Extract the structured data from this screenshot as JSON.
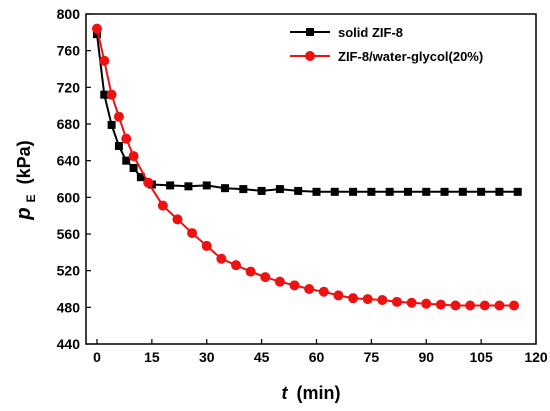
{
  "chart_data": {
    "type": "line",
    "xlabel_var": "t",
    "xlabel_unit": "(min)",
    "ylabel_var": "p",
    "ylabel_sub": "E",
    "ylabel_unit": "(kPa)",
    "xlim": [
      -3,
      120
    ],
    "ylim": [
      440,
      800
    ],
    "xticks": [
      0,
      15,
      30,
      45,
      60,
      75,
      90,
      105,
      120
    ],
    "yticks": [
      440,
      480,
      520,
      560,
      600,
      640,
      680,
      720,
      760,
      800
    ],
    "grid": false,
    "legend_position": "top-right",
    "series": [
      {
        "name": "solid ZIF-8",
        "color": "#000000",
        "marker": "square",
        "x": [
          0,
          2,
          4,
          6,
          8,
          10,
          12,
          15,
          20,
          25,
          30,
          35,
          40,
          45,
          50,
          55,
          60,
          65,
          70,
          75,
          80,
          85,
          90,
          95,
          100,
          105,
          110,
          115
        ],
        "y": [
          778,
          712,
          679,
          656,
          640,
          632,
          622,
          614,
          613,
          612,
          613,
          610,
          609,
          607,
          609,
          607,
          606,
          606,
          606,
          606,
          606,
          606,
          606,
          606,
          606,
          606,
          606,
          606
        ]
      },
      {
        "name": "ZIF-8/water-glycol(20%)",
        "color": "#ee1111",
        "marker": "circle",
        "x": [
          0,
          2,
          4,
          6,
          8,
          10,
          14,
          18,
          22,
          26,
          30,
          34,
          38,
          42,
          46,
          50,
          54,
          58,
          62,
          66,
          70,
          74,
          78,
          82,
          86,
          90,
          94,
          98,
          102,
          106,
          110,
          114
        ],
        "y": [
          784,
          749,
          712,
          688,
          664,
          645,
          616,
          591,
          576,
          561,
          547,
          533,
          526,
          519,
          513,
          508,
          504,
          500,
          497,
          493,
          490,
          489,
          488,
          486,
          485,
          484,
          483,
          482,
          482,
          482,
          482,
          482
        ]
      }
    ]
  }
}
